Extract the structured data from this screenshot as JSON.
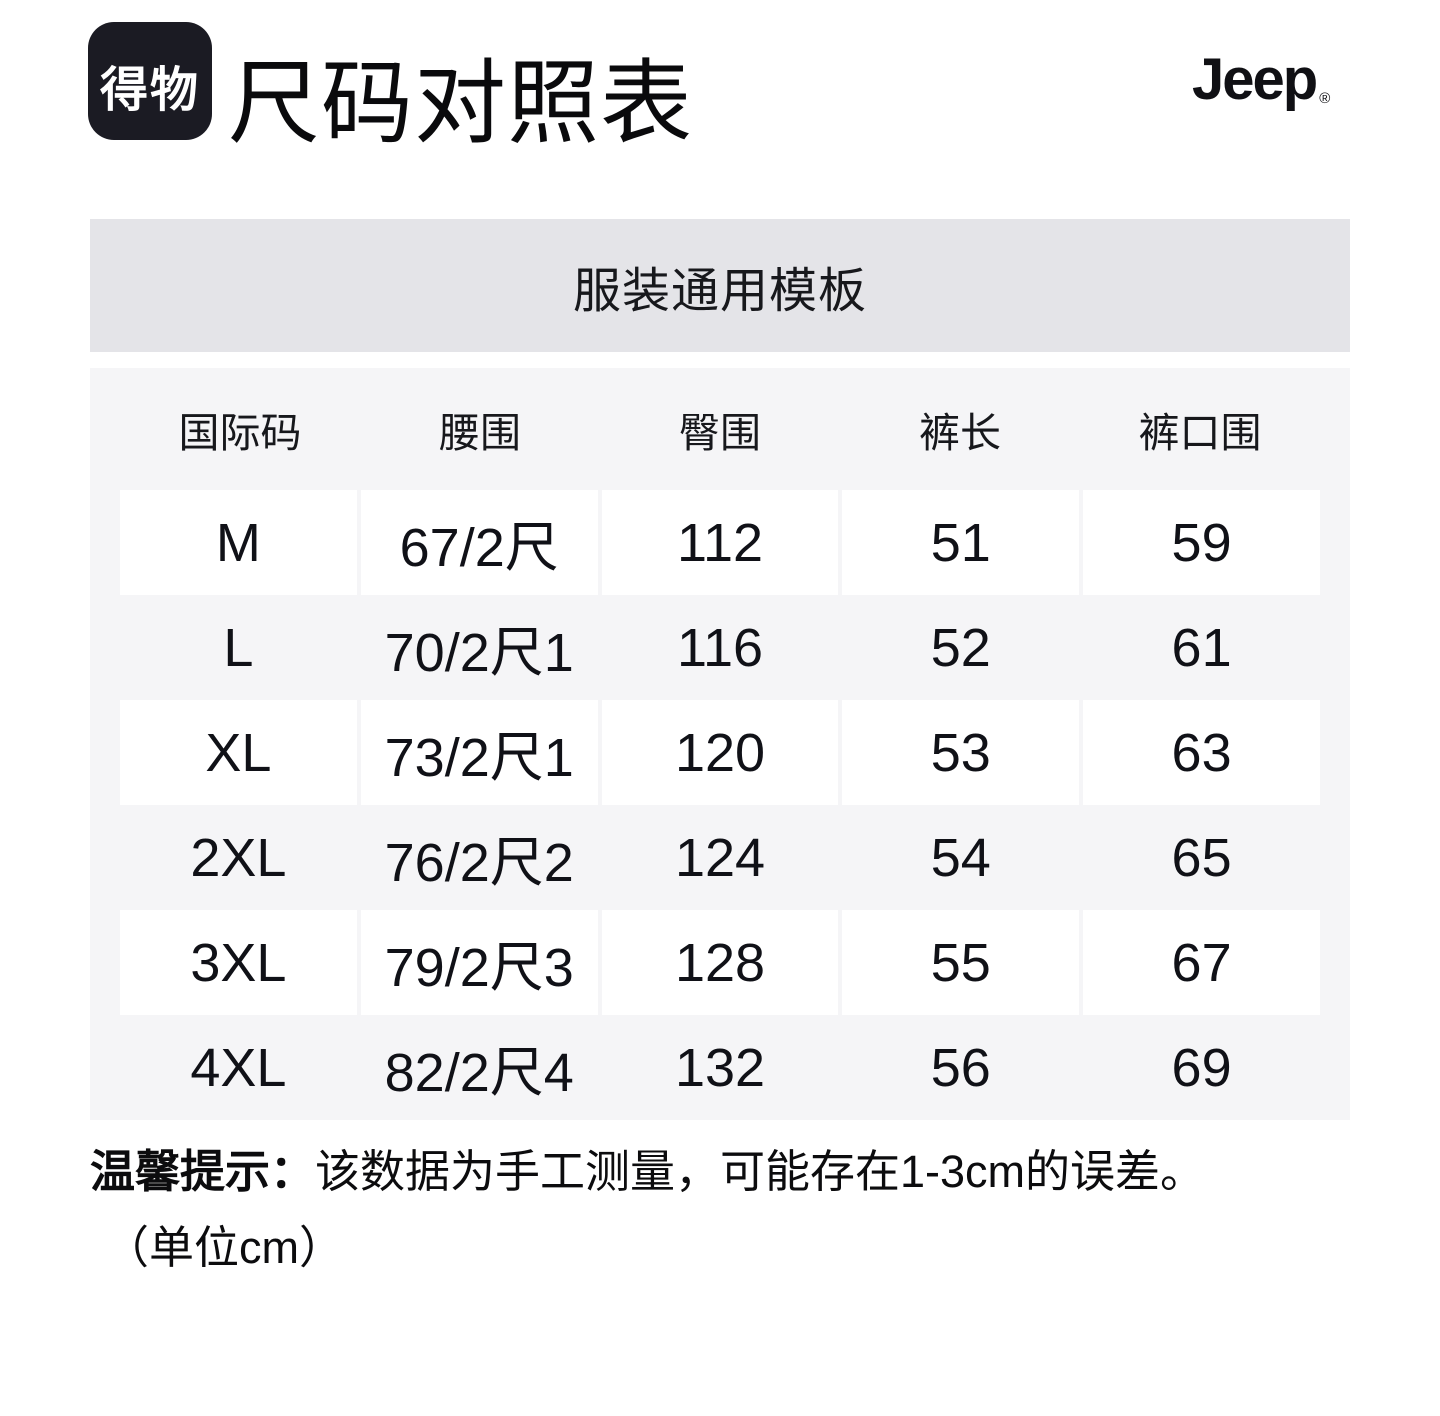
{
  "page": {
    "title": "尺码对照表"
  },
  "brand": {
    "dewu_logo_text": "得物",
    "partner_logo_text": "Jeep",
    "partner_logo_reg": "®"
  },
  "template_bar": {
    "label": "服装通用模板"
  },
  "size_table": {
    "columns": [
      "国际码",
      "腰围",
      "臀围",
      "裤长",
      "裤口围"
    ],
    "rows": [
      {
        "cells": [
          "M",
          "67/2尺",
          "112",
          "51",
          "59"
        ]
      },
      {
        "cells": [
          "L",
          "70/2尺1",
          "116",
          "52",
          "61"
        ]
      },
      {
        "cells": [
          "XL",
          "73/2尺1",
          "120",
          "53",
          "63"
        ]
      },
      {
        "cells": [
          "2XL",
          "76/2尺2",
          "124",
          "54",
          "65"
        ]
      },
      {
        "cells": [
          "3XL",
          "79/2尺3",
          "128",
          "55",
          "67"
        ]
      },
      {
        "cells": [
          "4XL",
          "82/2尺4",
          "132",
          "56",
          "69"
        ]
      }
    ]
  },
  "footer": {
    "notice_label": "温馨提示：",
    "notice_text": "该数据为手工测量，可能存在1-3cm的误差。",
    "unit_note": "（单位cm）"
  },
  "colors": {
    "logo_bg": "#1b1b23",
    "bar_bg": "#e4e4e8",
    "table_bg": "#f5f5f7",
    "cell_bg": "#ffffff",
    "text": "#14151a"
  }
}
